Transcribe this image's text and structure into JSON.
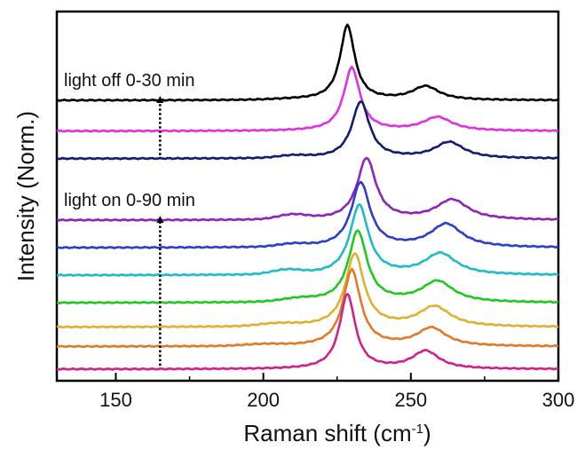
{
  "chart_data": {
    "type": "line",
    "xlabel": "Raman shift (cm",
    "xlabel_sup": "-1",
    "xlabel_close": ")",
    "ylabel": "Intensity (Norm.)",
    "xlim": [
      130,
      300
    ],
    "xticks": [
      150,
      200,
      250,
      300
    ],
    "y_ticks_shown": false,
    "grid": false,
    "legend": "none",
    "annotations": [
      {
        "text": "light off 0-30 min",
        "arrow_x": 165,
        "arrow_from_trace": 2,
        "arrow_to_trace": 0
      },
      {
        "text": "light on 0-90 min",
        "arrow_x": 165,
        "arrow_from_trace": 9,
        "arrow_to_trace": 3
      }
    ],
    "series": [
      {
        "color": "#000000",
        "offset": 8.3,
        "peaks": [
          [
            228.5,
            2.3,
            3.0
          ],
          [
            255,
            0.42,
            5.5
          ]
        ],
        "bumps": [
          [
            210,
            0.02,
            10
          ]
        ]
      },
      {
        "color": "#e030e0",
        "offset": 7.35,
        "peaks": [
          [
            230,
            1.95,
            3.3
          ],
          [
            259,
            0.42,
            6.0
          ]
        ],
        "bumps": []
      },
      {
        "color": "#141c6e",
        "offset": 6.5,
        "peaks": [
          [
            233,
            1.75,
            3.6
          ],
          [
            263,
            0.5,
            6.0
          ]
        ],
        "bumps": [
          [
            210,
            0.07,
            7
          ]
        ]
      },
      {
        "color": "#8e24b8",
        "offset": 4.6,
        "peaks": [
          [
            235,
            1.9,
            3.8
          ],
          [
            264,
            0.62,
            6.5
          ]
        ],
        "bumps": [
          [
            210,
            0.14,
            7
          ]
        ]
      },
      {
        "color": "#2c3fc8",
        "offset": 3.75,
        "peaks": [
          [
            233,
            2.0,
            3.8
          ],
          [
            262,
            0.72,
            6.5
          ]
        ],
        "bumps": [
          [
            210,
            0.08,
            7
          ]
        ]
      },
      {
        "color": "#1ebcc8",
        "offset": 2.9,
        "peaks": [
          [
            232.5,
            2.15,
            3.8
          ],
          [
            260,
            0.66,
            6.5
          ]
        ],
        "bumps": [
          [
            208,
            0.13,
            7
          ]
        ]
      },
      {
        "color": "#20c820",
        "offset": 2.05,
        "peaks": [
          [
            232,
            2.2,
            3.8
          ],
          [
            259,
            0.65,
            6.5
          ]
        ],
        "bumps": [
          [
            212,
            0.09,
            8
          ]
        ]
      },
      {
        "color": "#e0b030",
        "offset": 1.3,
        "peaks": [
          [
            231,
            2.25,
            3.8
          ],
          [
            258,
            0.62,
            6.5
          ]
        ],
        "bumps": [
          [
            205,
            0.08,
            9
          ]
        ]
      },
      {
        "color": "#e07a28",
        "offset": 0.7,
        "peaks": [
          [
            230,
            2.35,
            3.6
          ],
          [
            257,
            0.56,
            6.0
          ]
        ],
        "bumps": [
          [
            200,
            0.05,
            9
          ]
        ]
      },
      {
        "color": "#d0208a",
        "offset": 0.0,
        "peaks": [
          [
            228.5,
            2.3,
            3.2
          ],
          [
            255,
            0.55,
            5.5
          ]
        ],
        "bumps": []
      }
    ]
  }
}
